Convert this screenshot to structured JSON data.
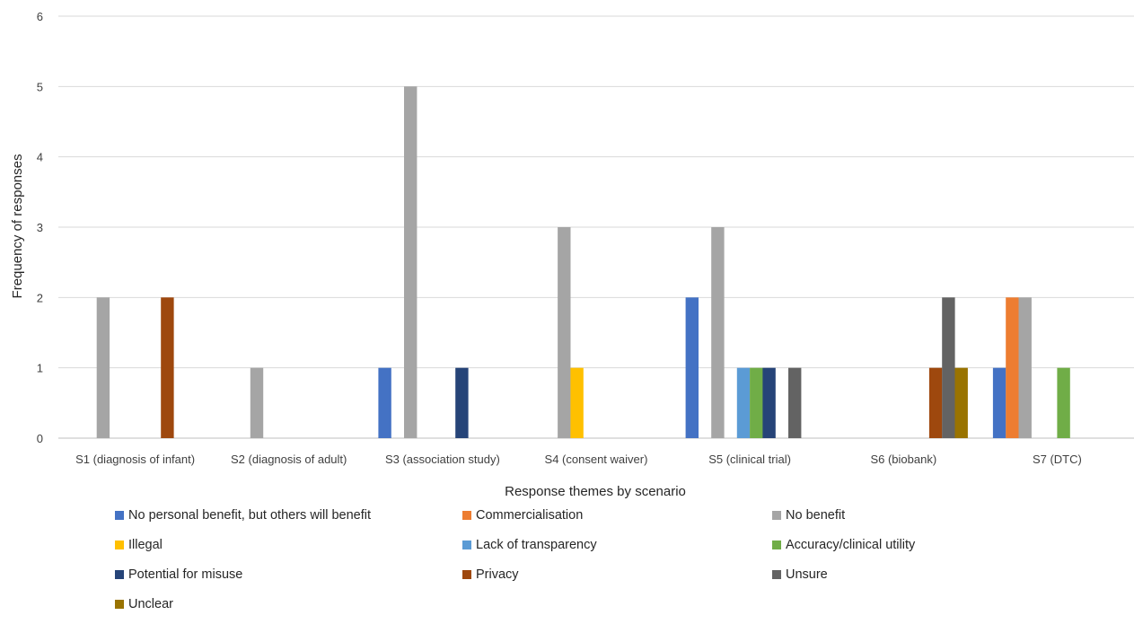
{
  "chart_data": {
    "type": "bar",
    "xlabel": "Response themes by scenario",
    "ylabel": "Frequency of responses",
    "ylim": [
      0,
      6
    ],
    "yticks": [
      "0",
      "1",
      "2",
      "3",
      "4",
      "5",
      "6"
    ],
    "grid": true,
    "legend_position": "bottom",
    "categories": [
      "S1 (diagnosis of infant)",
      "S2 (diagnosis of adult)",
      "S3 (association study)",
      "S4 (consent waiver)",
      "S5 (clinical trial)",
      "S6 (biobank)",
      "S7 (DTC)"
    ],
    "series": [
      {
        "name": "No personal benefit, but others will benefit",
        "color": "#4472C4",
        "values": [
          0,
          0,
          1,
          0,
          2,
          0,
          1
        ]
      },
      {
        "name": "Commercialisation",
        "color": "#ED7D31",
        "values": [
          0,
          0,
          0,
          0,
          0,
          0,
          2
        ]
      },
      {
        "name": "No benefit",
        "color": "#A5A5A5",
        "values": [
          2,
          1,
          5,
          3,
          3,
          0,
          2
        ]
      },
      {
        "name": "Illegal",
        "color": "#FFC000",
        "values": [
          0,
          0,
          0,
          1,
          0,
          0,
          0
        ]
      },
      {
        "name": "Lack of transparency",
        "color": "#5B9BD5",
        "values": [
          0,
          0,
          0,
          0,
          1,
          0,
          0
        ]
      },
      {
        "name": "Accuracy/clinical utility",
        "color": "#70AD47",
        "values": [
          0,
          0,
          0,
          0,
          1,
          0,
          1
        ]
      },
      {
        "name": "Potential for misuse",
        "color": "#264478",
        "values": [
          0,
          0,
          1,
          0,
          1,
          0,
          0
        ]
      },
      {
        "name": "Privacy",
        "color": "#9E480E",
        "values": [
          2,
          0,
          0,
          0,
          0,
          1,
          0
        ]
      },
      {
        "name": "Unsure",
        "color": "#636363",
        "values": [
          0,
          0,
          0,
          0,
          1,
          2,
          0
        ]
      },
      {
        "name": "Unclear",
        "color": "#997300",
        "values": [
          0,
          0,
          0,
          0,
          0,
          1,
          0
        ]
      }
    ]
  }
}
